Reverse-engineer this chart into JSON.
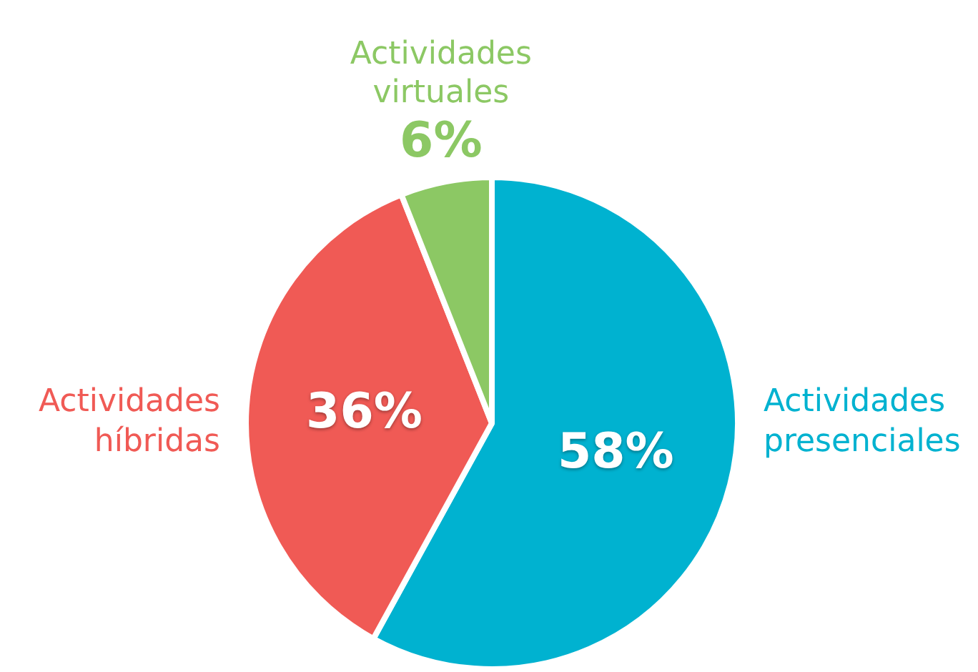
{
  "chart_data": {
    "type": "pie",
    "categories": [
      "Actividades presenciales",
      "Actividades híbridas",
      "Actividades virtuales"
    ],
    "values": [
      58,
      36,
      6
    ],
    "colors": [
      "#00b2d0",
      "#f05a55",
      "#8cc864"
    ],
    "value_labels": [
      "58%",
      "36%",
      "6%"
    ],
    "legend": false
  }
}
